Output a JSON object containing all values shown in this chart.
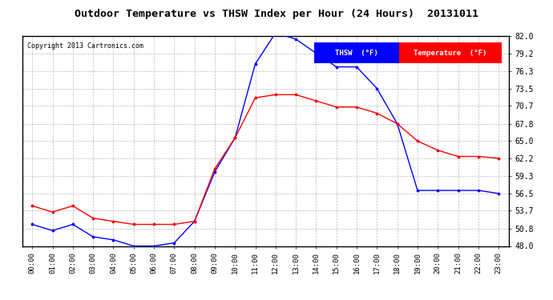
{
  "title": "Outdoor Temperature vs THSW Index per Hour (24 Hours)  20131011",
  "copyright": "Copyright 2013 Cartronics.com",
  "background_color": "#ffffff",
  "plot_bg_color": "#ffffff",
  "grid_color": "#aaaaaa",
  "hours": [
    0,
    1,
    2,
    3,
    4,
    5,
    6,
    7,
    8,
    9,
    10,
    11,
    12,
    13,
    14,
    15,
    16,
    17,
    18,
    19,
    20,
    21,
    22,
    23
  ],
  "thsw": [
    51.5,
    50.5,
    51.5,
    49.5,
    49.0,
    48.0,
    48.0,
    48.5,
    52.0,
    60.0,
    65.5,
    77.5,
    82.5,
    81.5,
    79.2,
    77.0,
    77.0,
    73.5,
    67.8,
    57.0,
    57.0,
    57.0,
    57.0,
    56.5
  ],
  "temp": [
    54.5,
    53.5,
    54.5,
    52.5,
    52.0,
    51.5,
    51.5,
    51.5,
    52.0,
    60.5,
    65.5,
    72.0,
    72.5,
    72.5,
    71.5,
    70.5,
    70.5,
    69.5,
    67.8,
    65.0,
    63.5,
    62.5,
    62.5,
    62.2
  ],
  "thsw_color": "#0000ff",
  "temp_color": "#ff0000",
  "ylim": [
    48.0,
    82.0
  ],
  "yticks": [
    48.0,
    50.8,
    53.7,
    56.5,
    59.3,
    62.2,
    65.0,
    67.8,
    70.7,
    73.5,
    76.3,
    79.2,
    82.0
  ],
  "xtick_labels": [
    "00:00",
    "01:00",
    "02:00",
    "03:00",
    "04:00",
    "05:00",
    "06:00",
    "07:00",
    "08:00",
    "09:00",
    "10:00",
    "11:00",
    "12:00",
    "13:00",
    "14:00",
    "15:00",
    "16:00",
    "17:00",
    "18:00",
    "19:00",
    "20:00",
    "21:00",
    "22:00",
    "23:00"
  ],
  "thsw_label": "THSW  (°F)",
  "temp_label": "Temperature  (°F)"
}
